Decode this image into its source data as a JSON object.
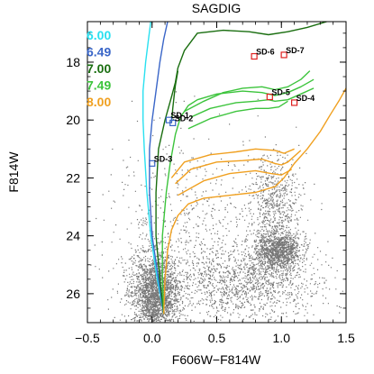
{
  "chart_data": {
    "type": "scatter",
    "title": "SAGDIG",
    "xlabel": "F606W−F814W",
    "ylabel": "F814W",
    "xlim": [
      -0.5,
      1.5
    ],
    "ylim": [
      27.0,
      16.6
    ],
    "y_inverted": true,
    "xticks": [
      -0.5,
      0.0,
      0.5,
      1.0,
      1.5
    ],
    "xtick_labels": [
      "−0.5",
      "0.0",
      "0.5",
      "1.0",
      "1.5"
    ],
    "yticks": [
      18,
      20,
      22,
      24,
      26
    ],
    "ytick_labels": [
      "18",
      "20",
      "22",
      "24",
      "26"
    ],
    "grid": false,
    "legend_placement": "top-left",
    "point_color": "#777777",
    "legend": [
      {
        "label": "6.00",
        "color": "#29e0f0"
      },
      {
        "label": "6.49",
        "color": "#3a66c8"
      },
      {
        "label": "7.00",
        "color": "#1a6e10"
      },
      {
        "label": "7.49",
        "color": "#3cc43c"
      },
      {
        "label": "8.00",
        "color": "#f0a020"
      }
    ],
    "series": [
      {
        "name": "6.00",
        "color": "#29e0f0",
        "points": [
          [
            0.09,
            26.7
          ],
          [
            0.04,
            25.5
          ],
          [
            -0.01,
            24.0
          ],
          [
            -0.04,
            22.5
          ],
          [
            -0.06,
            21.0
          ],
          [
            -0.07,
            20.0
          ],
          [
            -0.07,
            19.0
          ],
          [
            -0.05,
            18.0
          ],
          [
            -0.03,
            17.3
          ],
          [
            -0.01,
            16.6
          ]
        ]
      },
      {
        "name": "6.49",
        "color": "#3a66c8",
        "points": [
          [
            0.09,
            26.7
          ],
          [
            0.05,
            25.5
          ],
          [
            0.0,
            24.0
          ],
          [
            -0.02,
            22.5
          ],
          [
            -0.02,
            21.0
          ],
          [
            0.0,
            20.0
          ],
          [
            0.03,
            19.0
          ],
          [
            0.06,
            18.0
          ],
          [
            0.09,
            17.2
          ],
          [
            0.12,
            16.6
          ]
        ]
      },
      {
        "name": "7.00",
        "color": "#1a6e10",
        "points": [
          [
            0.09,
            26.7
          ],
          [
            0.06,
            25.5
          ],
          [
            0.03,
            24.0
          ],
          [
            0.03,
            22.5
          ],
          [
            0.05,
            21.0
          ],
          [
            0.1,
            20.0
          ],
          [
            0.15,
            19.2
          ],
          [
            0.18,
            18.7
          ],
          [
            0.2,
            18.2
          ],
          [
            0.25,
            17.6
          ],
          [
            0.35,
            17.0
          ],
          [
            0.55,
            16.9
          ],
          [
            0.75,
            16.95
          ],
          [
            0.9,
            17.05
          ],
          [
            1.05,
            16.95
          ],
          [
            1.2,
            16.8
          ],
          [
            1.35,
            16.6
          ]
        ]
      },
      {
        "name": "7.00-loop",
        "color": "#1a6e10",
        "points": [
          [
            0.15,
            20.1
          ],
          [
            0.16,
            19.6
          ],
          [
            0.17,
            19.2
          ],
          [
            0.18,
            18.8
          ],
          [
            0.2,
            18.3
          ]
        ]
      },
      {
        "name": "7.49",
        "color": "#3cc43c",
        "points": [
          [
            0.09,
            26.7
          ],
          [
            0.08,
            25.5
          ],
          [
            0.08,
            24.0
          ],
          [
            0.11,
            22.5
          ],
          [
            0.14,
            21.5
          ],
          [
            0.18,
            20.5
          ],
          [
            0.22,
            19.9
          ],
          [
            0.28,
            19.5
          ],
          [
            0.35,
            19.3
          ],
          [
            0.5,
            19.1
          ],
          [
            0.7,
            19.0
          ],
          [
            0.85,
            19.05
          ],
          [
            0.95,
            19.15
          ],
          [
            1.05,
            19.05
          ],
          [
            1.15,
            18.85
          ],
          [
            1.25,
            18.6
          ]
        ]
      },
      {
        "name": "7.49-loop-a",
        "color": "#3cc43c",
        "points": [
          [
            0.3,
            19.9
          ],
          [
            0.45,
            19.6
          ],
          [
            0.65,
            19.4
          ],
          [
            0.8,
            19.35
          ],
          [
            0.9,
            19.3
          ],
          [
            0.95,
            19.35
          ],
          [
            1.05,
            19.3
          ],
          [
            1.15,
            19.1
          ],
          [
            1.25,
            18.9
          ]
        ]
      },
      {
        "name": "7.49-loop-b",
        "color": "#3cc43c",
        "points": [
          [
            0.28,
            20.3
          ],
          [
            0.45,
            19.95
          ],
          [
            0.65,
            19.7
          ],
          [
            0.8,
            19.6
          ],
          [
            0.9,
            19.6
          ],
          [
            0.98,
            19.55
          ],
          [
            1.05,
            19.35
          ]
        ]
      },
      {
        "name": "7.49-loop-c",
        "color": "#3cc43c",
        "points": [
          [
            0.25,
            19.7
          ],
          [
            0.4,
            19.35
          ],
          [
            0.55,
            19.05
          ],
          [
            0.7,
            18.9
          ],
          [
            0.85,
            18.85
          ],
          [
            0.95,
            18.95
          ],
          [
            1.05,
            18.85
          ],
          [
            1.15,
            18.6
          ],
          [
            1.22,
            18.3
          ]
        ]
      },
      {
        "name": "8.00",
        "color": "#f0a020",
        "points": [
          [
            0.09,
            26.7
          ],
          [
            0.1,
            25.5
          ],
          [
            0.12,
            24.5
          ],
          [
            0.15,
            23.8
          ],
          [
            0.2,
            23.3
          ],
          [
            0.28,
            22.9
          ],
          [
            0.4,
            22.7
          ],
          [
            0.6,
            22.6
          ],
          [
            0.8,
            22.5
          ],
          [
            0.95,
            22.3
          ],
          [
            1.02,
            22.0
          ],
          [
            1.1,
            21.5
          ],
          [
            1.2,
            21.0
          ],
          [
            1.3,
            20.4
          ],
          [
            1.38,
            19.8
          ],
          [
            1.45,
            19.3
          ],
          [
            1.5,
            18.9
          ]
        ]
      },
      {
        "name": "8.00-loop-a",
        "color": "#f0a020",
        "points": [
          [
            0.18,
            22.2
          ],
          [
            0.3,
            21.7
          ],
          [
            0.5,
            21.45
          ],
          [
            0.7,
            21.4
          ],
          [
            0.85,
            21.35
          ],
          [
            0.95,
            21.5
          ],
          [
            1.0,
            21.55
          ],
          [
            1.05,
            21.45
          ],
          [
            1.15,
            21.05
          ]
        ]
      },
      {
        "name": "8.00-loop-b",
        "color": "#f0a020",
        "points": [
          [
            0.15,
            22.0
          ],
          [
            0.25,
            21.45
          ],
          [
            0.45,
            21.2
          ],
          [
            0.65,
            21.1
          ],
          [
            0.8,
            21.0
          ],
          [
            0.95,
            21.05
          ],
          [
            1.02,
            21.15
          ],
          [
            1.1,
            21.0
          ]
        ]
      },
      {
        "name": "8.00-loop-c",
        "color": "#f0a020",
        "points": [
          [
            0.2,
            22.6
          ],
          [
            0.4,
            22.1
          ],
          [
            0.6,
            21.85
          ],
          [
            0.8,
            21.75
          ],
          [
            0.92,
            21.85
          ],
          [
            1.0,
            21.9
          ],
          [
            1.08,
            21.7
          ]
        ]
      }
    ],
    "labeled_stars": [
      {
        "label": "SD-1",
        "x": 0.13,
        "y": 20.0,
        "marker_color": "#3a66c8"
      },
      {
        "label": "SD-2",
        "x": 0.16,
        "y": 20.1,
        "marker_color": "#3a66c8"
      },
      {
        "label": "SD-3",
        "x": 0.0,
        "y": 21.5,
        "marker_color": "#3a66c8"
      },
      {
        "label": "SD-4",
        "x": 1.1,
        "y": 19.4,
        "marker_color": "#e02020"
      },
      {
        "label": "SD-5",
        "x": 0.91,
        "y": 19.2,
        "marker_color": "#e02020"
      },
      {
        "label": "SD-6",
        "x": 0.79,
        "y": 17.8,
        "marker_color": "#e02020"
      },
      {
        "label": "SD-7",
        "x": 1.02,
        "y": 17.75,
        "marker_color": "#e02020"
      }
    ],
    "scatter_density": {
      "description_count": 6000,
      "components": [
        {
          "x": 0.02,
          "y": 26.0,
          "sx": 0.09,
          "sy": 0.7,
          "weight": 0.38
        },
        {
          "x": 0.97,
          "y": 24.5,
          "sx": 0.09,
          "sy": 0.35,
          "weight": 0.2
        },
        {
          "x": 0.75,
          "y": 25.6,
          "sx": 0.28,
          "sy": 0.6,
          "weight": 0.18
        },
        {
          "x": 0.95,
          "y": 22.8,
          "sx": 0.1,
          "sy": 0.8,
          "weight": 0.1
        },
        {
          "x": 0.3,
          "y": 24.3,
          "sx": 0.35,
          "sy": 1.8,
          "weight": 0.14
        }
      ]
    }
  }
}
